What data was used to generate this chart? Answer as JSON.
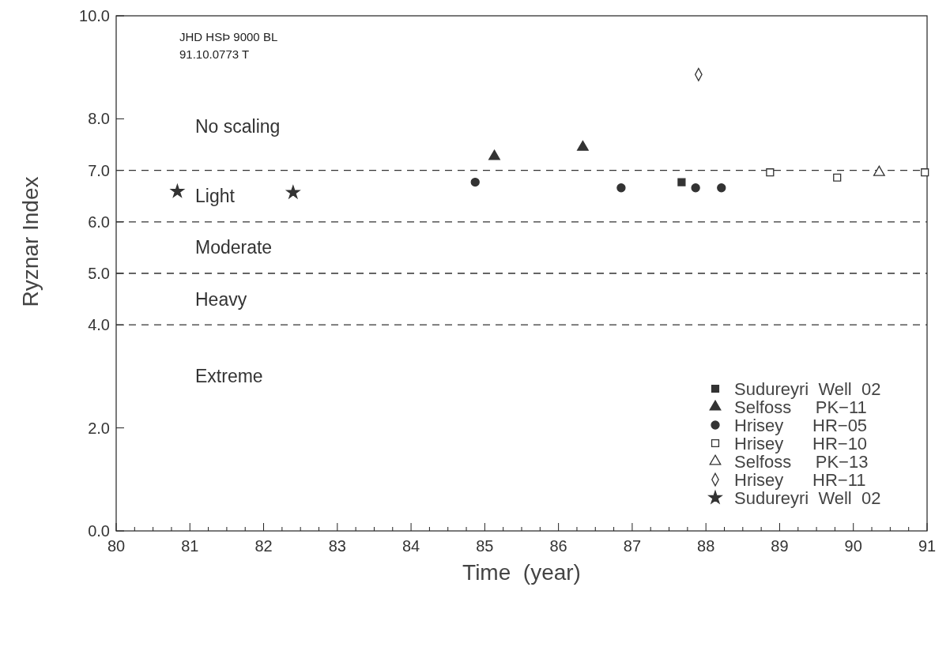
{
  "chart_data": {
    "type": "scatter",
    "xlabel": "Time  (year)",
    "ylabel": "Ryznar Index",
    "xlim": [
      80,
      91
    ],
    "xticks": [
      80,
      81,
      82,
      83,
      84,
      85,
      86,
      87,
      88,
      89,
      90,
      91
    ],
    "ylim": [
      0,
      10
    ],
    "yticks": [
      {
        "value": 0,
        "label": "0.0"
      },
      {
        "value": 2,
        "label": "2.0"
      },
      {
        "value": 4,
        "label": "4.0"
      },
      {
        "value": 5,
        "label": "5.0"
      },
      {
        "value": 6,
        "label": "6.0"
      },
      {
        "value": 7,
        "label": "7.0"
      },
      {
        "value": 8,
        "label": "8.0"
      },
      {
        "value": 10,
        "label": "10.0"
      }
    ],
    "grid": false,
    "legend": "bottom right",
    "ref_lines": [
      {
        "axis": "y",
        "value": 7,
        "line_style": "dashed"
      },
      {
        "axis": "y",
        "value": 6,
        "line_style": "dashed"
      },
      {
        "axis": "y",
        "value": 5,
        "line_style": "dashed"
      },
      {
        "axis": "y",
        "value": 4,
        "line_style": "dashed"
      }
    ],
    "annotations": [
      "JHD HSÞ 9000 BL",
      "91.10.0773 T",
      "No scaling",
      "Light",
      "Moderate",
      "Heavy",
      "Extreme"
    ],
    "series": [
      {
        "name": "Sudureyri  Well  02",
        "color": "#333333",
        "marker": "square",
        "x": [
          87.67
        ],
        "values": [
          6.77
        ]
      },
      {
        "name": "Selfoss     PK−11",
        "color": "#333333",
        "marker": "triangle",
        "x": [
          85.13,
          86.33
        ],
        "values": [
          7.27,
          7.45
        ]
      },
      {
        "name": "Hrisey      HR−05",
        "color": "#333333",
        "marker": "circle",
        "x": [
          84.87,
          86.85,
          87.86,
          88.21
        ],
        "values": [
          6.77,
          6.66,
          6.66,
          6.66
        ]
      },
      {
        "name": "Hrisey      HR−10",
        "color": "#ffffff",
        "marker": "square",
        "x": [
          88.87,
          89.78,
          90.97
        ],
        "values": [
          6.96,
          6.86,
          6.96
        ]
      },
      {
        "name": "Selfoss     PK−13",
        "color": "#ffffff",
        "marker": "triangle",
        "x": [
          90.35
        ],
        "values": [
          6.96
        ]
      },
      {
        "name": "Hrisey      HR−11",
        "color": "#ffffff",
        "marker": "diamond",
        "x": [
          87.9
        ],
        "values": [
          8.86
        ]
      },
      {
        "name": "Sudureyri  Well  02",
        "color": "#333333",
        "marker": "star",
        "x": [
          80.83,
          82.4
        ],
        "values": [
          6.59,
          6.57
        ]
      }
    ]
  }
}
